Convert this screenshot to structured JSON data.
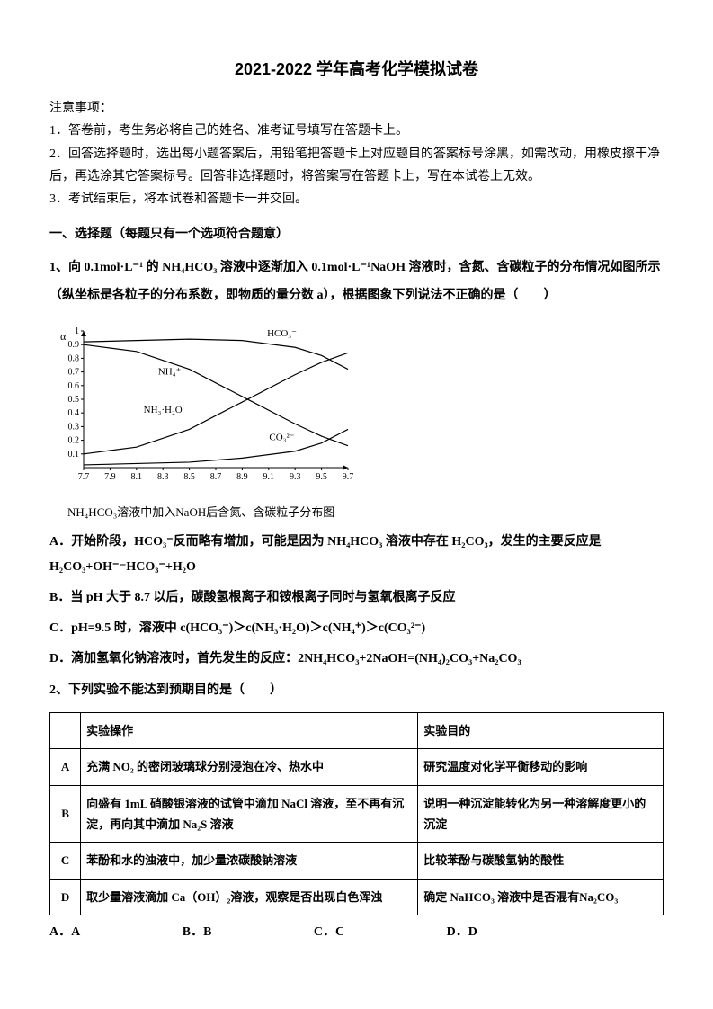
{
  "title": "2021-2022 学年高考化学模拟试卷",
  "instructions": {
    "heading": "注意事项：",
    "items": [
      "1．答卷前，考生务必将自己的姓名、准考证号填写在答题卡上。",
      "2．回答选择题时，选出每小题答案后，用铅笔把答题卡上对应题目的答案标号涂黑，如需改动，用橡皮擦干净后，再选涂其它答案标号。回答非选择题时，将答案写在答题卡上，写在本试卷上无效。",
      "3．考试结束后，将本试卷和答题卡一并交回。"
    ]
  },
  "section_header": "一、选择题（每题只有一个选项符合题意）",
  "q1": {
    "stem_prefix": "1、向 0.1mol·L⁻¹ 的 NH₄HCO₃ 溶液中逐渐加入 0.1mol·L⁻¹NaOH 溶液时，含氮、含碳粒子的分布情况如图所示（纵坐标是各粒子的分布系数，即物质的量分数 a），根据图象下列说法不正确的是（　　）",
    "chart": {
      "type": "line",
      "xlim": [
        7.7,
        9.7
      ],
      "ylim": [
        0,
        1.0
      ],
      "xticks": [
        "7.7",
        "7.9",
        "8.1",
        "8.3",
        "8.5",
        "8.7",
        "8.9",
        "9.1",
        "9.3",
        "9.5",
        "9.7"
      ],
      "yticks": [
        "0.1",
        "0.2",
        "0.3",
        "0.4",
        "0.5",
        "0.6",
        "0.7",
        "0.8",
        "0.9",
        "1"
      ],
      "ylabel": "α",
      "background_color": "#ffffff",
      "axis_color": "#000000",
      "line_color": "#000000",
      "line_width": 1.2,
      "label_fontsize": 12,
      "tick_fontsize": 10,
      "series": [
        {
          "label": "HCO₃⁻",
          "points": [
            [
              7.7,
              0.92
            ],
            [
              8.1,
              0.93
            ],
            [
              8.5,
              0.94
            ],
            [
              8.9,
              0.93
            ],
            [
              9.3,
              0.88
            ],
            [
              9.5,
              0.82
            ],
            [
              9.7,
              0.72
            ]
          ],
          "label_pos": [
            9.2,
            0.96
          ]
        },
        {
          "label": "NH₄⁺",
          "points": [
            [
              7.7,
              0.9
            ],
            [
              8.1,
              0.85
            ],
            [
              8.5,
              0.72
            ],
            [
              8.9,
              0.52
            ],
            [
              9.3,
              0.32
            ],
            [
              9.5,
              0.23
            ],
            [
              9.7,
              0.16
            ]
          ],
          "label_pos": [
            8.35,
            0.68
          ]
        },
        {
          "label": "NH₃·H₂O",
          "points": [
            [
              7.7,
              0.1
            ],
            [
              8.1,
              0.15
            ],
            [
              8.5,
              0.28
            ],
            [
              8.9,
              0.48
            ],
            [
              9.3,
              0.68
            ],
            [
              9.5,
              0.77
            ],
            [
              9.7,
              0.84
            ]
          ],
          "label_pos": [
            8.3,
            0.4
          ]
        },
        {
          "label": "CO₃²⁻",
          "points": [
            [
              7.7,
              0.02
            ],
            [
              8.1,
              0.03
            ],
            [
              8.5,
              0.04
            ],
            [
              8.9,
              0.07
            ],
            [
              9.3,
              0.12
            ],
            [
              9.5,
              0.18
            ],
            [
              9.7,
              0.28
            ]
          ],
          "label_pos": [
            9.2,
            0.2
          ]
        }
      ],
      "caption": "NH₄HCO₃溶液中加入NaOH后含氮、含碳粒子分布图"
    },
    "options": {
      "A": "A．开始阶段，HCO₃⁻反而略有增加，可能是因为 NH₄HCO₃ 溶液中存在 H₂CO₃，发生的主要反应是H₂CO₃+OH⁻=HCO₃⁻+H₂O",
      "B": "B．当 pH 大于 8.7 以后，碳酸氢根离子和铵根离子同时与氢氧根离子反应",
      "C": "C．pH=9.5 时，溶液中 c(HCO₃⁻)＞c(NH₃·H₂O)＞c(NH₄⁺)＞c(CO₃²⁻)",
      "D": "D．滴加氢氧化钠溶液时，首先发生的反应：2NH₄HCO₃+2NaOH=(NH₄)₂CO₃+Na₂CO₃"
    }
  },
  "q2": {
    "stem": "2、下列实验不能达到预期目的是（　　）",
    "table": {
      "header": {
        "op": "实验操作",
        "purpose": "实验目的"
      },
      "rows": [
        {
          "letter": "A",
          "op": "充满 NO₂ 的密闭玻璃球分别浸泡在冷、热水中",
          "purpose": "研究温度对化学平衡移动的影响"
        },
        {
          "letter": "B",
          "op": "向盛有 1mL 硝酸银溶液的试管中滴加 NaCl 溶液，至不再有沉淀，再向其中滴加 Na₂S 溶液",
          "purpose": "说明一种沉淀能转化为另一种溶解度更小的沉淀"
        },
        {
          "letter": "C",
          "op": "苯酚和水的浊液中，加少量浓碳酸钠溶液",
          "purpose": "比较苯酚与碳酸氢钠的酸性"
        },
        {
          "letter": "D",
          "op": "取少量溶液滴加 Ca（OH）₂溶液，观察是否出现白色浑浊",
          "purpose": "确定 NaHCO₃ 溶液中是否混有Na₂CO₃"
        }
      ]
    },
    "answers": {
      "A": "A．A",
      "B": "B．B",
      "C": "C．C",
      "D": "D．D"
    }
  }
}
